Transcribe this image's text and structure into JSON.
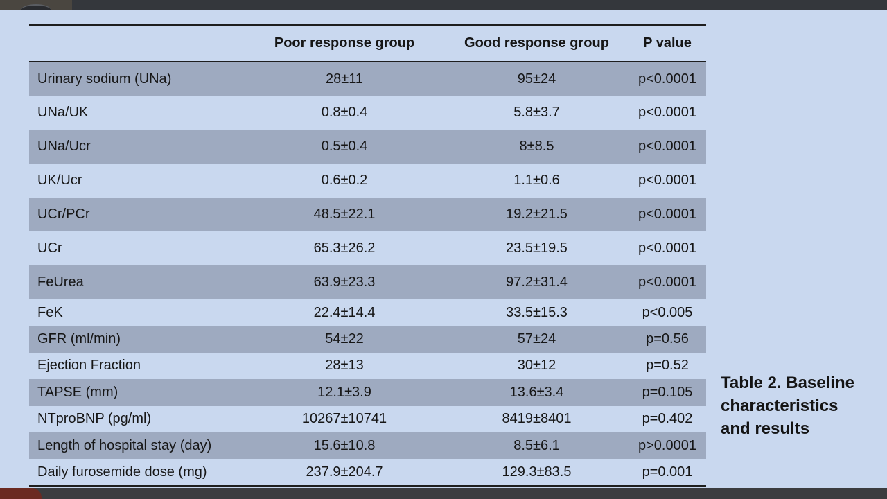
{
  "table": {
    "headers": [
      "",
      "Poor response group",
      "Good response group",
      "P value"
    ],
    "rows": [
      {
        "label": "Urinary sodium (UNa)",
        "poor": "28±11",
        "good": "95±24",
        "p": "p<0.0001"
      },
      {
        "label": "UNa/UK",
        "poor": "0.8±0.4",
        "good": "5.8±3.7",
        "p": "p<0.0001"
      },
      {
        "label": "UNa/Ucr",
        "poor": "0.5±0.4",
        "good": "8±8.5",
        "p": "p<0.0001"
      },
      {
        "label": "UK/Ucr",
        "poor": "0.6±0.2",
        "good": "1.1±0.6",
        "p": "p<0.0001"
      },
      {
        "label": "UCr/PCr",
        "poor": "48.5±22.1",
        "good": "19.2±21.5",
        "p": "p<0.0001"
      },
      {
        "label": "UCr",
        "poor": "65.3±26.2",
        "good": "23.5±19.5",
        "p": "p<0.0001"
      },
      {
        "label": "FeUrea",
        "poor": "63.9±23.3",
        "good": "97.2±31.4",
        "p": "p<0.0001"
      },
      {
        "label": "FeK",
        "poor": "22.4±14.4",
        "good": "33.5±15.3",
        "p": "p<0.005"
      },
      {
        "label": "GFR (ml/min)",
        "poor": "54±22",
        "good": "57±24",
        "p": "p=0.56"
      },
      {
        "label": "Ejection Fraction",
        "poor": "28±13",
        "good": "30±12",
        "p": "p=0.52"
      },
      {
        "label": "TAPSE (mm)",
        "poor": "12.1±3.9",
        "good": "13.6±3.4",
        "p": "p=0.105"
      },
      {
        "label": "NTproBNP (pg/ml)",
        "poor": "10267±10741",
        "good": "8419±8401",
        "p": "p=0.402"
      },
      {
        "label": "Length of hospital stay (day)",
        "poor": "15.6±10.8",
        "good": "8.5±6.1",
        "p": "p>0.0001"
      },
      {
        "label": "Daily furosemide dose (mg)",
        "poor": "237.9±204.7",
        "good": "129.3±83.5",
        "p": "p=0.001"
      }
    ]
  },
  "caption": {
    "line1": "Table 2. Baseline",
    "line2": "characteristics",
    "line3": "and results"
  }
}
